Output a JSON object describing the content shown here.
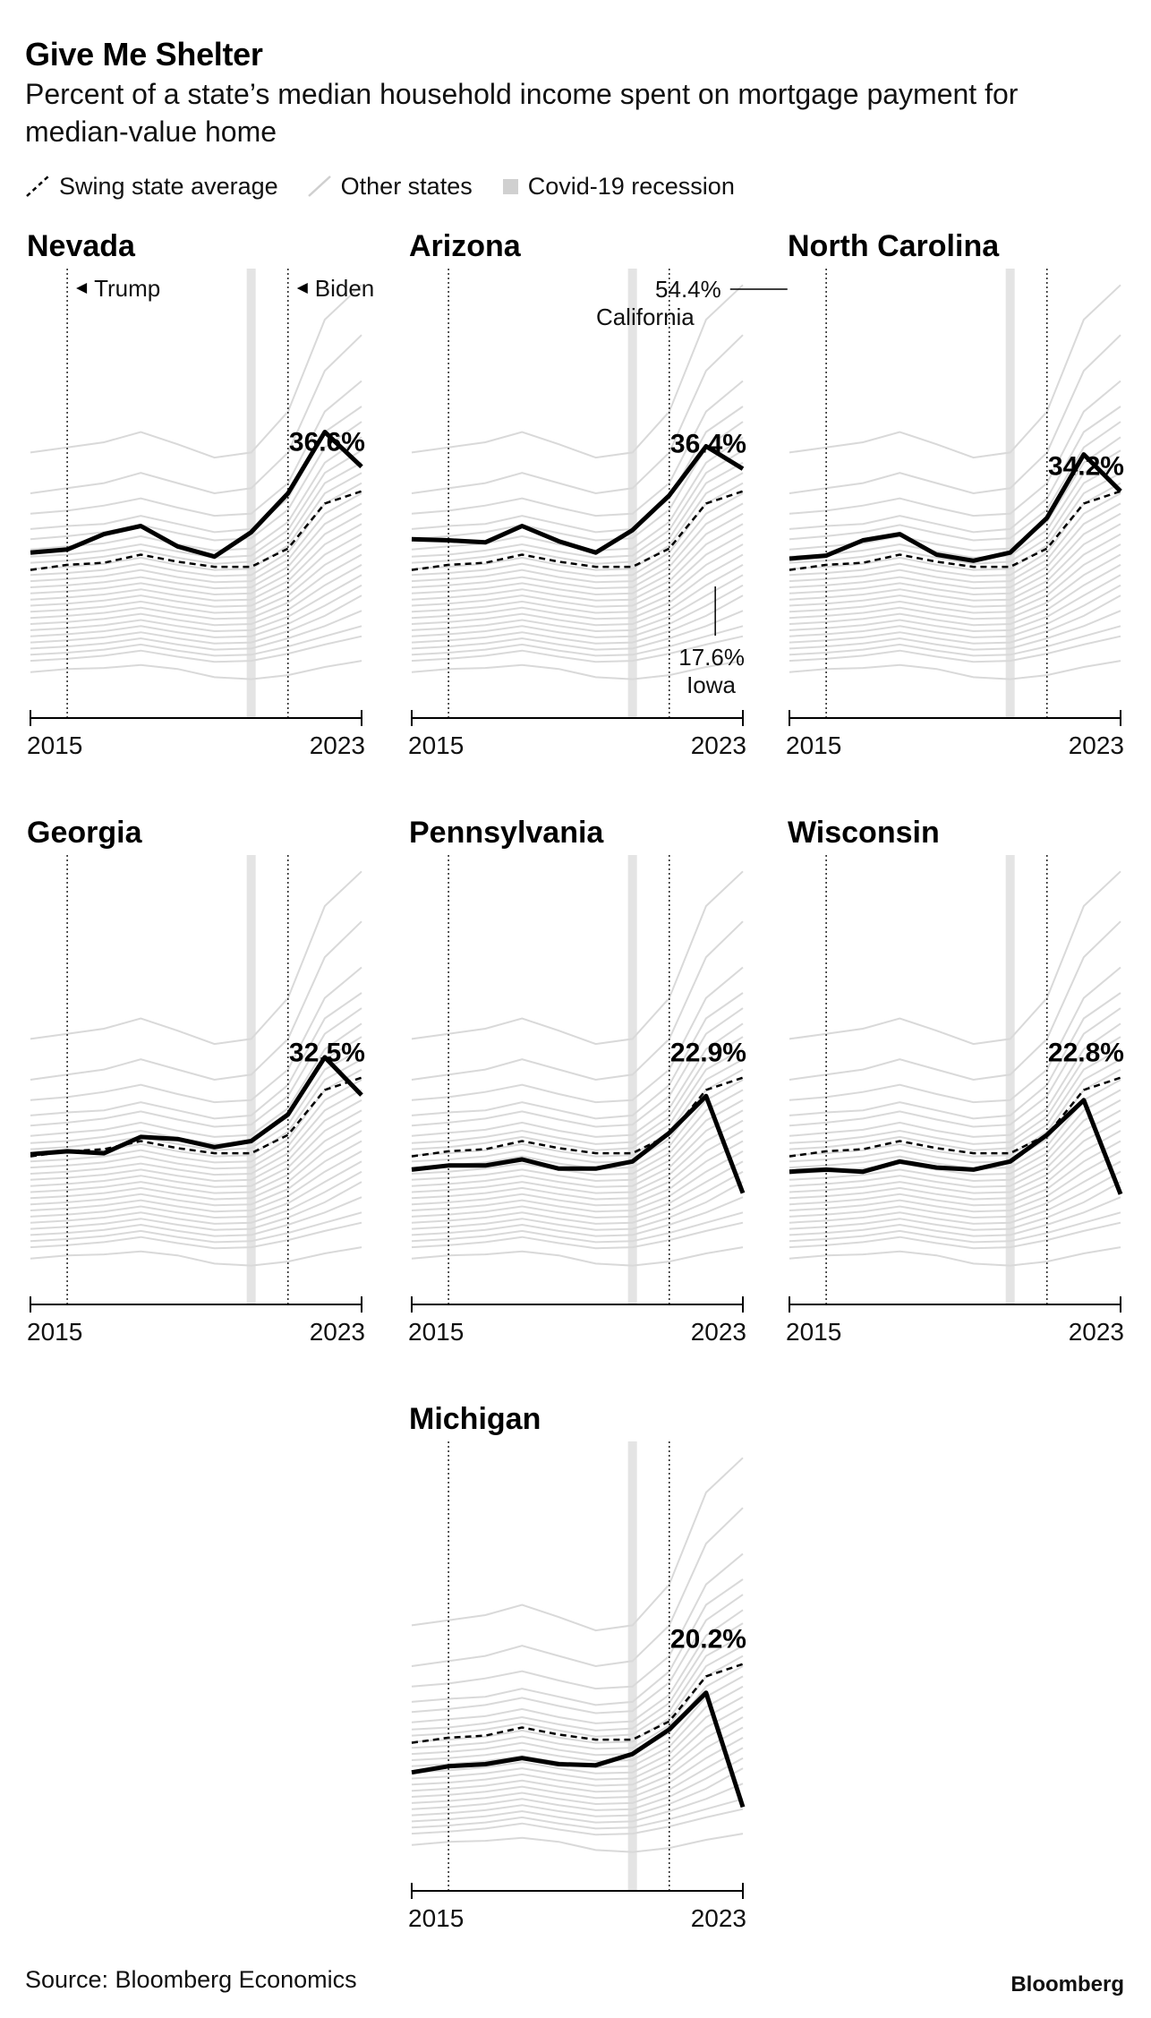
{
  "header": {
    "title": "Give Me Shelter",
    "subtitle": "Percent of a state’s median household income spent on mortgage payment for median-value home"
  },
  "legend": {
    "swing": "Swing state average",
    "other": "Other states",
    "covid": "Covid-19 recession"
  },
  "footer": {
    "source": "Source: Bloomberg Economics",
    "brand": "Bloomberg"
  },
  "colors": {
    "state_line": "#000000",
    "swing_line": "#000000",
    "other_lines": "#d9d9d9",
    "covid_band": "#e4e4e4"
  },
  "annotations": {
    "trump": "Trump",
    "biden": "Biden",
    "california_value": "54.4%",
    "california_name": "California",
    "iowa_value": "17.6%",
    "iowa_name": "Iowa"
  },
  "chart_data": {
    "type": "line",
    "x": [
      2014,
      2015,
      2016,
      2017,
      2018,
      2019,
      2020,
      2021,
      2022,
      2023
    ],
    "x_tick_labels": [
      "2015",
      "2023"
    ],
    "ylim": [
      12,
      56
    ],
    "grid": false,
    "legend_position": "top-left",
    "vlines": [
      {
        "label": "Trump",
        "x": 2015,
        "style": "dotted"
      },
      {
        "label": "Biden",
        "x": 2021,
        "style": "dotted"
      }
    ],
    "covid_recession_x": 2020,
    "swing_state_average": [
      26.5,
      27.0,
      27.2,
      28.0,
      27.3,
      26.8,
      26.8,
      28.6,
      33.0,
      34.2
    ],
    "other_states": [
      {
        "name": "California",
        "values": [
          38.0,
          38.5,
          39.0,
          40.0,
          38.8,
          37.5,
          38.0,
          42.0,
          51.0,
          54.4
        ]
      },
      {
        "name": "Iowa",
        "values": [
          16.5,
          16.8,
          16.9,
          17.2,
          16.8,
          16.0,
          15.8,
          16.2,
          17.0,
          17.6
        ]
      },
      {
        "name": "",
        "values": [
          34.0,
          34.5,
          35.0,
          36.0,
          35.0,
          34.0,
          34.5,
          38.0,
          46.0,
          49.5
        ]
      },
      {
        "name": "",
        "values": [
          32.0,
          32.3,
          32.8,
          33.5,
          32.6,
          31.8,
          32.0,
          35.0,
          42.0,
          45.0
        ]
      },
      {
        "name": "",
        "values": [
          30.5,
          30.8,
          31.0,
          31.8,
          31.0,
          30.2,
          30.5,
          33.5,
          40.0,
          42.5
        ]
      },
      {
        "name": "",
        "values": [
          29.5,
          29.8,
          30.2,
          30.9,
          30.1,
          29.4,
          29.6,
          32.4,
          38.5,
          41.0
        ]
      },
      {
        "name": "",
        "values": [
          28.5,
          28.8,
          29.1,
          29.8,
          29.0,
          28.4,
          28.6,
          31.2,
          37.0,
          39.5
        ]
      },
      {
        "name": "",
        "values": [
          27.8,
          28.0,
          28.4,
          29.0,
          28.3,
          27.7,
          27.9,
          30.4,
          36.0,
          38.2
        ]
      },
      {
        "name": "",
        "values": [
          27.2,
          27.4,
          27.8,
          28.4,
          27.7,
          27.1,
          27.3,
          29.6,
          35.0,
          37.0
        ]
      },
      {
        "name": "",
        "values": [
          26.6,
          26.8,
          27.1,
          27.7,
          27.0,
          26.5,
          26.6,
          28.9,
          34.0,
          36.0
        ]
      },
      {
        "name": "",
        "values": [
          26.0,
          26.2,
          26.5,
          27.1,
          26.4,
          25.9,
          26.0,
          28.2,
          33.0,
          35.0
        ]
      },
      {
        "name": "",
        "values": [
          25.4,
          25.6,
          25.9,
          26.5,
          25.8,
          25.3,
          25.4,
          27.5,
          32.0,
          34.0
        ]
      },
      {
        "name": "",
        "values": [
          24.8,
          25.0,
          25.3,
          25.8,
          25.2,
          24.7,
          24.8,
          26.8,
          31.0,
          33.0
        ]
      },
      {
        "name": "",
        "values": [
          24.2,
          24.4,
          24.7,
          25.2,
          24.6,
          24.1,
          24.2,
          26.1,
          30.0,
          32.0
        ]
      },
      {
        "name": "",
        "values": [
          23.6,
          23.8,
          24.1,
          24.6,
          24.0,
          23.5,
          23.6,
          25.4,
          29.0,
          31.0
        ]
      },
      {
        "name": "",
        "values": [
          23.0,
          23.2,
          23.5,
          24.0,
          23.4,
          22.9,
          23.0,
          24.7,
          28.0,
          30.0
        ]
      },
      {
        "name": "",
        "values": [
          22.4,
          22.6,
          22.9,
          23.4,
          22.8,
          22.3,
          22.4,
          24.0,
          27.0,
          29.0
        ]
      },
      {
        "name": "",
        "values": [
          21.8,
          22.0,
          22.3,
          22.8,
          22.2,
          21.7,
          21.8,
          23.3,
          26.0,
          28.0
        ]
      },
      {
        "name": "",
        "values": [
          21.2,
          21.4,
          21.7,
          22.2,
          21.6,
          21.1,
          21.2,
          22.6,
          25.0,
          27.0
        ]
      },
      {
        "name": "",
        "values": [
          20.6,
          20.8,
          21.1,
          21.6,
          21.0,
          20.5,
          20.6,
          21.9,
          24.0,
          26.0
        ]
      },
      {
        "name": "",
        "values": [
          20.0,
          20.2,
          20.5,
          21.0,
          20.4,
          19.9,
          20.0,
          21.2,
          23.0,
          25.0
        ]
      },
      {
        "name": "",
        "values": [
          19.4,
          19.6,
          19.9,
          20.4,
          19.8,
          19.3,
          19.4,
          20.5,
          22.0,
          24.0
        ]
      },
      {
        "name": "",
        "values": [
          18.8,
          19.0,
          19.3,
          19.8,
          19.2,
          18.7,
          18.8,
          19.8,
          21.0,
          22.5
        ]
      },
      {
        "name": "",
        "values": [
          18.2,
          18.4,
          18.7,
          19.2,
          18.6,
          18.1,
          18.2,
          19.0,
          20.0,
          21.0
        ]
      },
      {
        "name": "",
        "values": [
          17.6,
          17.8,
          18.1,
          18.6,
          18.0,
          17.5,
          17.6,
          18.3,
          19.2,
          20.0
        ]
      }
    ],
    "panels": [
      {
        "state": "Nevada",
        "value_label": "36.6%",
        "values": [
          28.2,
          28.5,
          30.0,
          30.8,
          28.8,
          27.8,
          30.2,
          34.0,
          40.0,
          36.6
        ]
      },
      {
        "state": "Arizona",
        "value_label": "36.4%",
        "values": [
          29.5,
          29.4,
          29.2,
          30.8,
          29.3,
          28.2,
          30.4,
          33.8,
          38.6,
          36.4
        ]
      },
      {
        "state": "North Carolina",
        "value_label": "34.2%",
        "values": [
          27.6,
          27.9,
          29.4,
          30.0,
          28.0,
          27.4,
          28.2,
          31.6,
          37.8,
          34.2
        ]
      },
      {
        "state": "Georgia",
        "value_label": "32.5%",
        "values": [
          26.7,
          27.0,
          26.8,
          28.4,
          28.2,
          27.4,
          28.0,
          30.6,
          36.2,
          32.5
        ]
      },
      {
        "state": "Pennsylvania",
        "value_label": "22.9%",
        "values": [
          25.2,
          25.6,
          25.6,
          26.2,
          25.3,
          25.3,
          26.0,
          28.8,
          32.4,
          22.9
        ]
      },
      {
        "state": "Wisconsin",
        "value_label": "22.8%",
        "values": [
          25.0,
          25.2,
          25.0,
          26.0,
          25.4,
          25.2,
          26.0,
          28.6,
          32.0,
          22.8
        ]
      },
      {
        "state": "Michigan",
        "value_label": "20.2%",
        "values": [
          23.6,
          24.2,
          24.4,
          25.0,
          24.4,
          24.3,
          25.4,
          27.8,
          31.4,
          20.2
        ]
      }
    ]
  }
}
